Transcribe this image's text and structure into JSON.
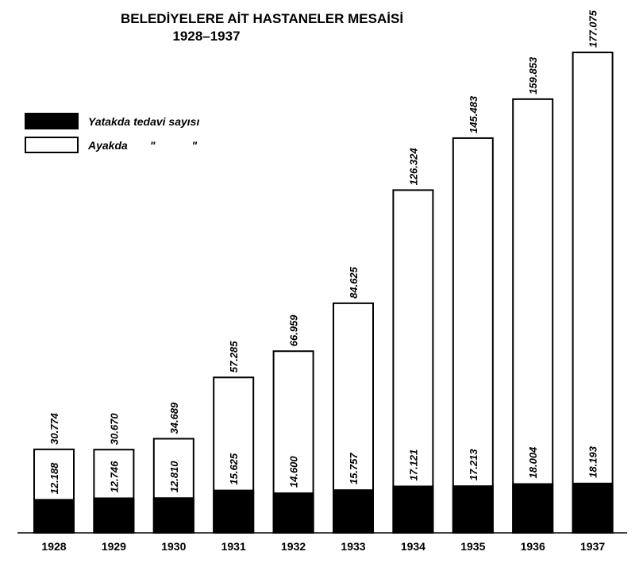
{
  "chart_data": {
    "type": "bar",
    "title": "BELEDİYELERE AİT HASTANELER MESAİSİ",
    "subtitle": "1928–1937",
    "categories": [
      "1928",
      "1929",
      "1930",
      "1931",
      "1932",
      "1933",
      "1934",
      "1935",
      "1936",
      "1937"
    ],
    "series": [
      {
        "name": "Yatakda tedavi sayısı",
        "color": "#000000",
        "values": [
          12188,
          12746,
          12810,
          15625,
          14600,
          15757,
          17121,
          17213,
          18004,
          18193
        ],
        "labels": [
          "12.188",
          "12.746",
          "12.810",
          "15.625",
          "14.600",
          "15.757",
          "17.121",
          "17.213",
          "18.004",
          "18.193"
        ]
      },
      {
        "name": "Ayakda",
        "name_suffix": [
          "\"",
          "\""
        ],
        "color": "#ffffff",
        "values": [
          30774,
          30670,
          34689,
          57285,
          66959,
          84625,
          126324,
          145483,
          159853,
          177075
        ],
        "labels": [
          "30.774",
          "30.670",
          "34.689",
          "57.285",
          "66.959",
          "84.625",
          "126.324",
          "145.483",
          "159.853",
          "177.075"
        ]
      }
    ],
    "legend_position": "top-left",
    "grid": false
  }
}
